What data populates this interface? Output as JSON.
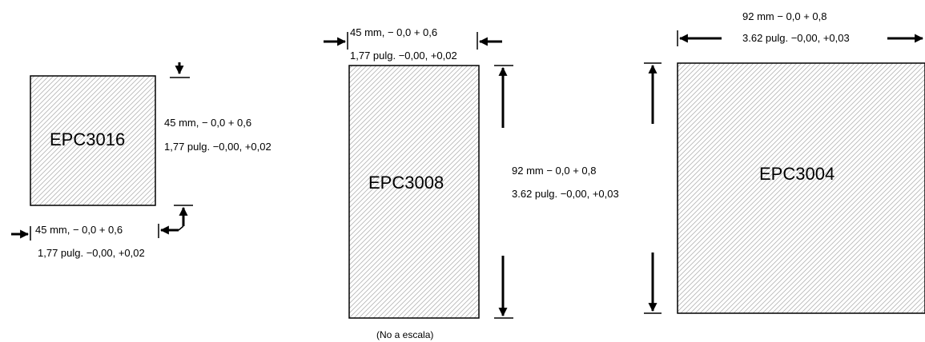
{
  "panels": {
    "epc3016": {
      "label": "EPC3016",
      "height_mm": "45 mm, − 0,0 + 0,6",
      "height_in": "1,77 pulg. −0,00, +0,02",
      "width_mm": "45 mm, − 0,0 + 0,6",
      "width_in": "1,77 pulg. −0,00, +0,02"
    },
    "epc3008": {
      "label": "EPC3008",
      "width_mm": "45 mm, − 0,0 + 0,6",
      "width_in": "1,77 pulg. −0,00, +0,02",
      "height_mm": "92 mm − 0,0 + 0,8",
      "height_in": "3.62 pulg. −0,00, +0,03",
      "note": "(No a escala)"
    },
    "epc3004": {
      "label": "EPC3004",
      "width_mm": "92 mm − 0,0 + 0,8",
      "width_in": "3.62 pulg. −0,00, +0,03"
    }
  },
  "colors": {
    "ink": "#000000",
    "hatch": "#b8b8b8",
    "background": "#ffffff"
  }
}
